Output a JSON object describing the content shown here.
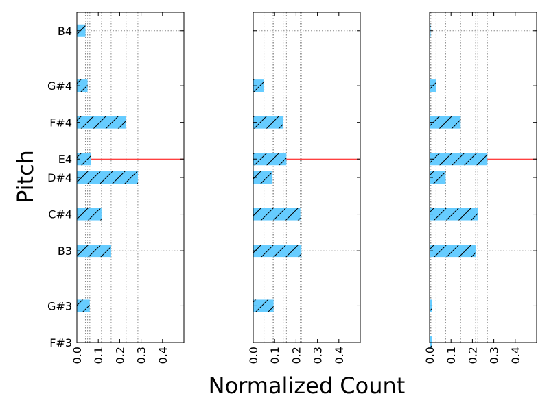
{
  "chart_data": {
    "type": "bar",
    "orientation": "horizontal",
    "xlabel": "Normalized Count",
    "ylabel": "Pitch",
    "xlim": [
      0,
      0.5
    ],
    "x_ticks": [
      "0.0",
      "0.1",
      "0.2",
      "0.3",
      "0.4"
    ],
    "pitch_range": [
      54,
      72
    ],
    "y_ticks": [
      {
        "label": "F#3",
        "midi": 54
      },
      {
        "label": "G#3",
        "midi": 56
      },
      {
        "label": "B3",
        "midi": 59
      },
      {
        "label": "C#4",
        "midi": 61
      },
      {
        "label": "D#4",
        "midi": 63
      },
      {
        "label": "E4",
        "midi": 64
      },
      {
        "label": "F#4",
        "midi": 66
      },
      {
        "label": "G#4",
        "midi": 68
      },
      {
        "label": "B4",
        "midi": 71
      }
    ],
    "bar_color": "#66ccff",
    "hatch": "/",
    "highlight_pitch": "E4",
    "highlight_color": "#ff0000",
    "panels": [
      {
        "values": [
          0.0,
          0.06,
          0.16,
          0.115,
          0.285,
          0.065,
          0.23,
          0.05,
          0.04
        ],
        "vlines": [
          0.04,
          0.05,
          0.06,
          0.065,
          0.115,
          0.16,
          0.23,
          0.285
        ]
      },
      {
        "values": [
          0.0,
          0.095,
          0.225,
          0.22,
          0.09,
          0.155,
          0.14,
          0.05,
          0.0
        ],
        "vlines": [
          0.0,
          0.05,
          0.09,
          0.095,
          0.14,
          0.155,
          0.22,
          0.225
        ]
      },
      {
        "values": [
          0.01,
          0.01,
          0.215,
          0.225,
          0.075,
          0.27,
          0.145,
          0.03,
          0.005
        ],
        "vlines": [
          0.005,
          0.01,
          0.03,
          0.075,
          0.145,
          0.215,
          0.225,
          0.27
        ]
      }
    ]
  }
}
